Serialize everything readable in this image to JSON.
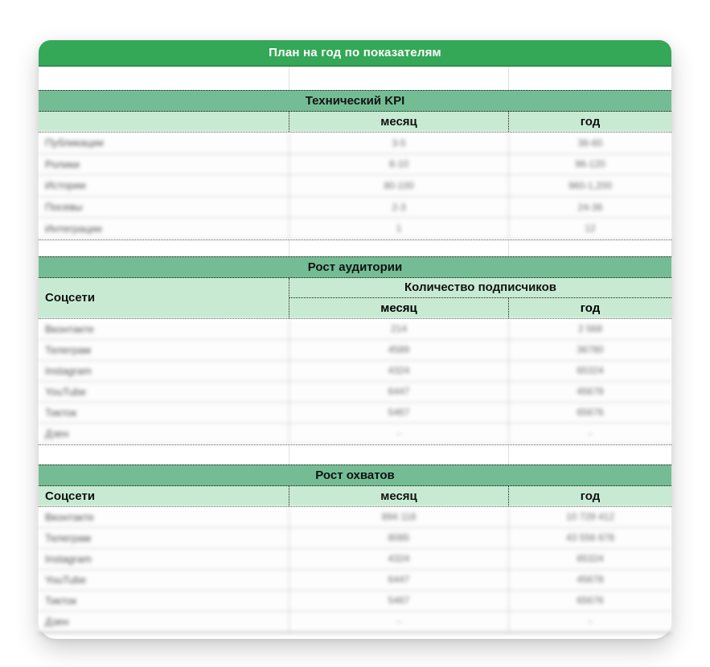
{
  "title": "План на год по показателям",
  "colors": {
    "banner_green": "#34a857",
    "section_band_green": "#74bd94",
    "header_light_green": "#c8ead3",
    "title_text": "#ffffff",
    "header_text": "#111111"
  },
  "sections": [
    {
      "title": "Технический KPI",
      "col_month": "месяц",
      "col_year": "год",
      "rows": [
        {
          "label": "Публикации",
          "month": "3-5",
          "year": "36-60"
        },
        {
          "label": "Ролики",
          "month": "8-10",
          "year": "96-120"
        },
        {
          "label": "Истории",
          "month": "80-100",
          "year": "960-1,200"
        },
        {
          "label": "Посевы",
          "month": "2-3",
          "year": "24-36"
        },
        {
          "label": "Интеграции",
          "month": "1",
          "year": "12"
        }
      ]
    },
    {
      "title": "Рост аудитории",
      "col_socials": "Соцсети",
      "col_group": "Количество подписчиков",
      "col_month": "месяц",
      "col_year": "год",
      "rows": [
        {
          "label": "Вконтакте",
          "month": "214",
          "year": "2 568"
        },
        {
          "label": "Телеграм",
          "month": "4589",
          "year": "36780"
        },
        {
          "label": "Instagram",
          "month": "4324",
          "year": "65324"
        },
        {
          "label": "YouTube",
          "month": "6447",
          "year": "45678"
        },
        {
          "label": "Тикток",
          "month": "5467",
          "year": "65676"
        },
        {
          "label": "Дзен",
          "month": "-",
          "year": "-"
        }
      ]
    },
    {
      "title": "Рост охватов",
      "col_socials": "Соцсети",
      "col_month": "месяц",
      "col_year": "год",
      "rows": [
        {
          "label": "Вконтакте",
          "month": "894 118",
          "year": "10 729 412"
        },
        {
          "label": "Телеграм",
          "month": "8085",
          "year": "43 556 678"
        },
        {
          "label": "Instagram",
          "month": "4324",
          "year": "65324"
        },
        {
          "label": "YouTube",
          "month": "6447",
          "year": "45678"
        },
        {
          "label": "Тикток",
          "month": "5467",
          "year": "65676"
        },
        {
          "label": "Дзен",
          "month": "-",
          "year": "-"
        }
      ]
    }
  ]
}
